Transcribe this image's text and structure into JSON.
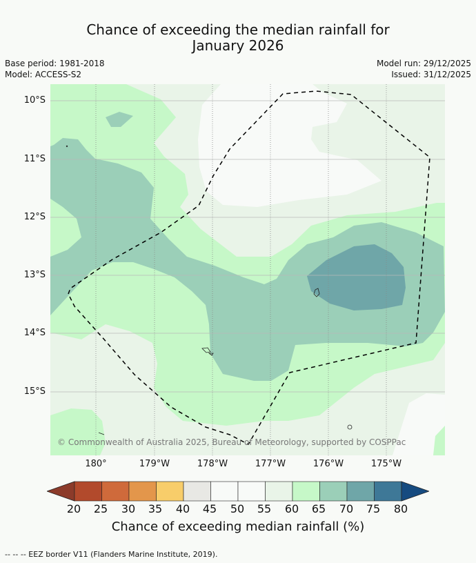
{
  "title": {
    "line1": "Chance of exceeding the median rainfall for",
    "line2": "January 2026"
  },
  "meta": {
    "base_period": "Base period: 1981-2018",
    "model": "Model: ACCESS-S2",
    "model_run": "Model run: 29/12/2025",
    "issued": "Issued: 31/12/2025"
  },
  "map": {
    "lat_labels": [
      "10°S",
      "11°S",
      "12°S",
      "13°S",
      "14°S",
      "15°S"
    ],
    "lon_labels": [
      "180°",
      "179°W",
      "178°W",
      "177°W",
      "176°W",
      "175°W"
    ],
    "copyright": "© Commonwealth of Australia 2025, Bureau of Meteorology, supported by COSPPac"
  },
  "colorbar": {
    "ticks": [
      "20",
      "25",
      "30",
      "35",
      "40",
      "45",
      "50",
      "55",
      "60",
      "65",
      "70",
      "75",
      "80"
    ],
    "colors": [
      "#b24a2c",
      "#cf6a3b",
      "#e3964b",
      "#f8cd6a",
      "#e8e8e4",
      "#f8faf8",
      "#f8faf8",
      "#e9f4e8",
      "#c6f8c8",
      "#9bcfb8",
      "#6fa6a8",
      "#3e7897"
    ],
    "under_color": "#8c3b2a",
    "over_color": "#164b80",
    "label": "Chance of exceeding median rainfall (%)"
  },
  "legend": {
    "eez": "--  --  -- EEZ border V11 (Flanders Marine Institute, 2019)."
  }
}
